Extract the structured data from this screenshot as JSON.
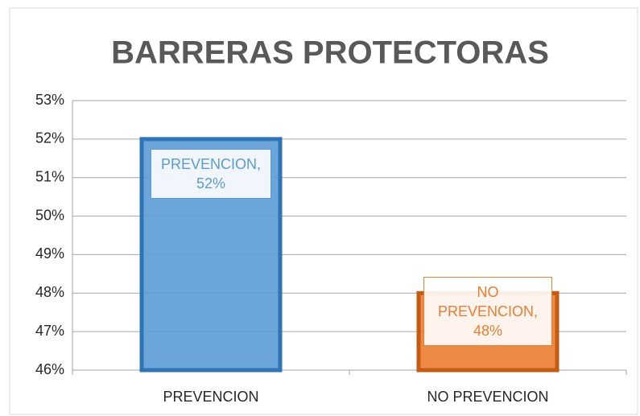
{
  "chart_data": {
    "type": "bar",
    "title": "BARRERAS PROTECTORAS",
    "categories": [
      "PREVENCION",
      "NO PREVENCION"
    ],
    "values": [
      52,
      48
    ],
    "value_labels": [
      "PREVENCION, 52%",
      "NO PREVENCION, 48%"
    ],
    "colors": [
      "#5b9bd5",
      "#ed7d31"
    ],
    "ylim": [
      46,
      53
    ],
    "yticks": [
      {
        "value": 46,
        "label": "46%"
      },
      {
        "value": 47,
        "label": "47%"
      },
      {
        "value": 48,
        "label": "48%"
      },
      {
        "value": 49,
        "label": "49%"
      },
      {
        "value": 50,
        "label": "50%"
      },
      {
        "value": 51,
        "label": "51%"
      },
      {
        "value": 52,
        "label": "52%"
      },
      {
        "value": 53,
        "label": "53%"
      }
    ],
    "grid": true
  }
}
